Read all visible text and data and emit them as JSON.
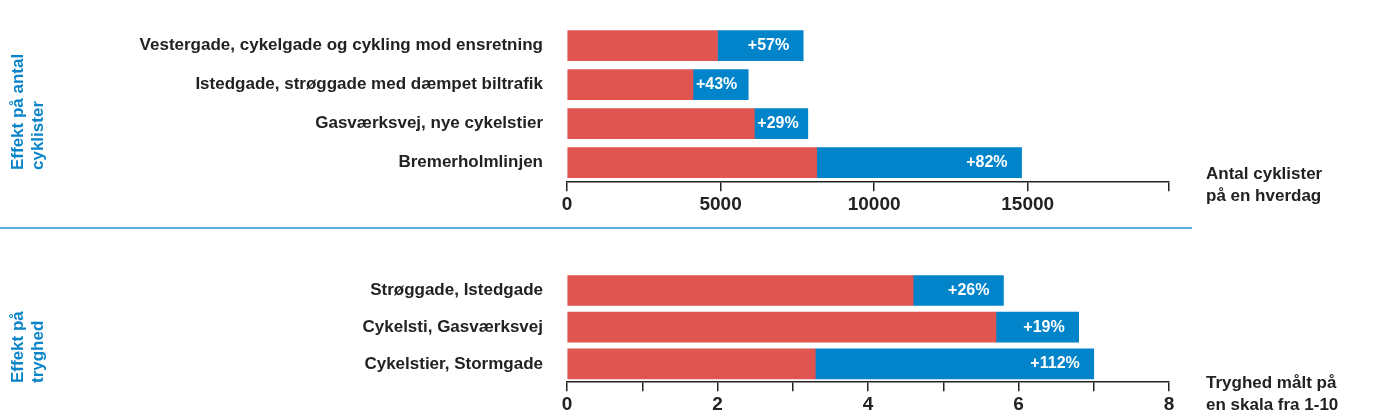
{
  "chart_data": [
    {
      "type": "bar",
      "orientation": "horizontal",
      "stacked": true,
      "ylabel": "Effekt på antal\ncyklister",
      "xlabel": "Antal cyklister\npå en hverdag",
      "categories": [
        "Vestergade, cykelgade og cykling mod ensretning",
        "Istedgade, strøggade med dæmpet biltrafik",
        "Gasværksvej, nye cykelstier",
        "Bremerholmlinjen"
      ],
      "series": [
        {
          "color": "#e05550",
          "values": [
            4900,
            4100,
            6100,
            8130
          ]
        },
        {
          "color": "#0284cb",
          "values": [
            2790,
            1800,
            1740,
            6670
          ]
        }
      ],
      "annotations": [
        {
          "text": "+57%",
          "x": 7690,
          "y": "Vestergade, cykelgade og cykling mod ensretning"
        },
        {
          "text": "+43%",
          "x": 5900,
          "y": "Istedgade, strøggade med dæmpet biltrafik"
        },
        {
          "text": "+29%",
          "x": 7840,
          "y": "Gasværksvej, nye cykelstier"
        },
        {
          "text": "+82%",
          "x": 14800,
          "y": "Bremerholmlinjen"
        }
      ],
      "xlim": [
        0,
        19600
      ],
      "xticks": [
        0,
        5000,
        10000,
        15000,
        {
          "value": 19600,
          "label": null
        }
      ]
    },
    {
      "type": "bar",
      "orientation": "horizontal",
      "stacked": true,
      "ylabel": "Effekt på\ntryghed",
      "xlabel": "Tryghed målt på\nen skala fra 1-10",
      "categories": [
        "Strøggade, Istedgade",
        "Cykelsti, Gasværksvej",
        "Cykelstier, Stormgade"
      ],
      "series": [
        {
          "color": "#e05550",
          "values": [
            4.6,
            5.7,
            3.3
          ]
        },
        {
          "color": "#0284cb",
          "values": [
            1.2,
            1.1,
            3.7
          ]
        }
      ],
      "annotations": [
        {
          "text": "+26%",
          "x": 5.8,
          "y": "Strøggade, Istedgade"
        },
        {
          "text": "+19%",
          "x": 6.8,
          "y": "Cykelsti, Gasværksvej"
        },
        {
          "text": "+112%",
          "x": 7.0,
          "y": "Cykelstier, Stormgade"
        }
      ],
      "xlim": [
        0,
        8
      ],
      "xticks": [
        0,
        {
          "value": 1,
          "label": null
        },
        2,
        {
          "value": 3,
          "label": null
        },
        4,
        {
          "value": 5,
          "label": null
        },
        6,
        {
          "value": 7,
          "label": null
        },
        8
      ]
    }
  ]
}
